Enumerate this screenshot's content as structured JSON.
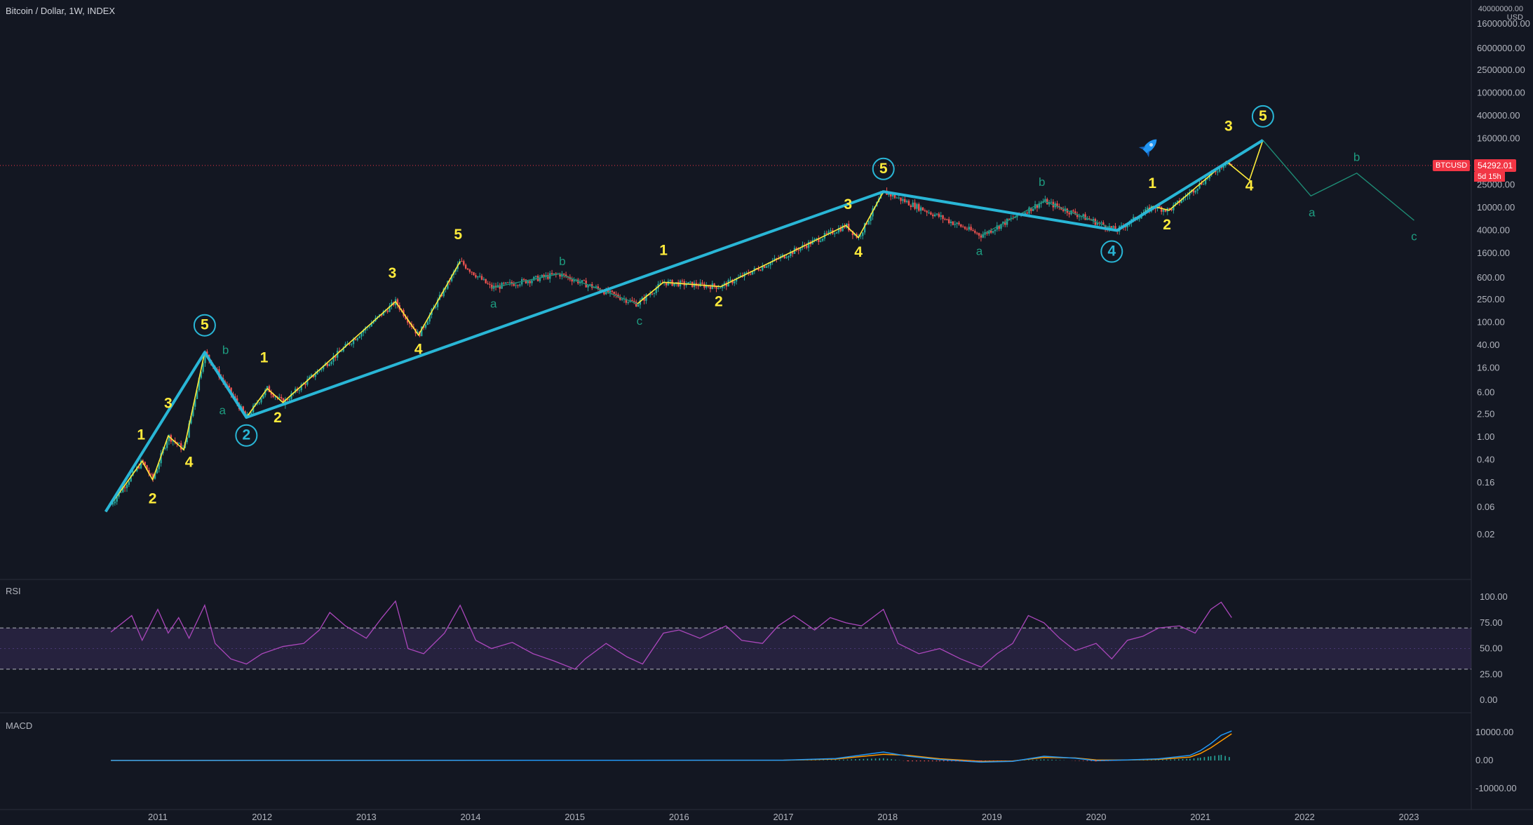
{
  "header": {
    "title": "Bitcoin / Dollar, 1W, INDEX",
    "currency": "USD",
    "top_price": "40000000.00"
  },
  "price_tag": {
    "symbol": "BTCUSD",
    "price": "54292.01",
    "countdown": "5d 15h"
  },
  "rsi_label": "RSI",
  "macd_label": "MACD",
  "chart_data": [
    {
      "type": "candlestick",
      "scale": "log",
      "price_ticks": [
        "16000000.00",
        "6000000.00",
        "2500000.00",
        "1000000.00",
        "400000.00",
        "160000.00",
        "25000.00",
        "10000.00",
        "4000.00",
        "1600.00",
        "600.00",
        "250.00",
        "100.00",
        "40.00",
        "16.00",
        "6.00",
        "2.50",
        "1.00",
        "0.40",
        "0.16",
        "0.06",
        "0.02"
      ],
      "x_ticks": [
        "2011",
        "2012",
        "2013",
        "2014",
        "2015",
        "2016",
        "2017",
        "2018",
        "2019",
        "2020",
        "2021",
        "2022",
        "2023"
      ],
      "last_price": 54292.01,
      "cyan_wave": [
        {
          "date": 2010.5,
          "price": 0.05
        },
        {
          "date": 2011.45,
          "price": 30
        },
        {
          "date": 2011.85,
          "price": 2.2
        },
        {
          "date": 2017.96,
          "price": 19000
        },
        {
          "date": 2020.2,
          "price": 4000
        },
        {
          "date": 2021.6,
          "price": 150000
        }
      ],
      "yellow_waves": [
        [
          {
            "date": 2010.5,
            "price": 0.05
          },
          {
            "date": 2010.85,
            "price": 0.38
          },
          {
            "date": 2010.95,
            "price": 0.18
          },
          {
            "date": 2011.1,
            "price": 1.05
          },
          {
            "date": 2011.25,
            "price": 0.6
          },
          {
            "date": 2011.45,
            "price": 30
          }
        ],
        [
          {
            "date": 2011.85,
            "price": 2.2
          },
          {
            "date": 2012.05,
            "price": 7
          },
          {
            "date": 2012.2,
            "price": 4
          },
          {
            "date": 2013.28,
            "price": 230
          },
          {
            "date": 2013.5,
            "price": 60
          },
          {
            "date": 2013.9,
            "price": 1150
          }
        ],
        [
          {
            "date": 2015.6,
            "price": 210
          },
          {
            "date": 2015.85,
            "price": 500
          },
          {
            "date": 2016.4,
            "price": 420
          },
          {
            "date": 2017.6,
            "price": 4900
          },
          {
            "date": 2017.72,
            "price": 3000
          },
          {
            "date": 2017.96,
            "price": 19000
          }
        ],
        [
          {
            "date": 2020.2,
            "price": 4000
          },
          {
            "date": 2020.55,
            "price": 10500
          },
          {
            "date": 2020.7,
            "price": 9000
          },
          {
            "date": 2021.25,
            "price": 64000
          },
          {
            "date": 2021.47,
            "price": 30000
          },
          {
            "date": 2021.6,
            "price": 150000
          }
        ]
      ],
      "green_corrections": [
        [
          {
            "date": 2014.2,
            "price": 400
          },
          {
            "date": 2014.85,
            "price": 700
          },
          {
            "date": 2015.6,
            "price": 210
          }
        ],
        [
          {
            "date": 2018.9,
            "price": 3300
          },
          {
            "date": 2019.5,
            "price": 13000
          },
          {
            "date": 2020.2,
            "price": 4000
          }
        ],
        [
          {
            "date": 2021.6,
            "price": 150000
          },
          {
            "date": 2022.06,
            "price": 16000
          },
          {
            "date": 2022.5,
            "price": 40000
          },
          {
            "date": 2023.05,
            "price": 6000
          }
        ]
      ],
      "wave_labels": [
        {
          "text": "1",
          "date": 2010.84,
          "price": 0.9,
          "color": "yellow"
        },
        {
          "text": "2",
          "date": 2010.95,
          "price": 0.07,
          "color": "yellow"
        },
        {
          "text": "3",
          "date": 2011.1,
          "price": 3.2,
          "color": "yellow"
        },
        {
          "text": "4",
          "date": 2011.3,
          "price": 0.3,
          "color": "yellow"
        },
        {
          "text": "5",
          "date": 2011.45,
          "price": 75,
          "color": "yellow",
          "circled": true
        },
        {
          "text": "a",
          "date": 2011.62,
          "price": 2.5,
          "color": "green"
        },
        {
          "text": "b",
          "date": 2011.65,
          "price": 28,
          "color": "green"
        },
        {
          "text": "2",
          "date": 2011.85,
          "price": 0.9,
          "color": "cyan",
          "circled": true
        },
        {
          "text": "1",
          "date": 2012.02,
          "price": 20,
          "color": "yellow"
        },
        {
          "text": "2",
          "date": 2012.15,
          "price": 1.8,
          "color": "yellow"
        },
        {
          "text": "3",
          "date": 2013.25,
          "price": 600,
          "color": "yellow"
        },
        {
          "text": "4",
          "date": 2013.5,
          "price": 28,
          "color": "yellow"
        },
        {
          "text": "5",
          "date": 2013.88,
          "price": 2800,
          "color": "yellow"
        },
        {
          "text": "a",
          "date": 2014.22,
          "price": 180,
          "color": "green"
        },
        {
          "text": "b",
          "date": 2014.88,
          "price": 1000,
          "color": "green"
        },
        {
          "text": "c",
          "date": 2015.62,
          "price": 90,
          "color": "green"
        },
        {
          "text": "1",
          "date": 2015.85,
          "price": 1500,
          "color": "yellow"
        },
        {
          "text": "2",
          "date": 2016.38,
          "price": 190,
          "color": "yellow"
        },
        {
          "text": "3",
          "date": 2017.62,
          "price": 9500,
          "color": "yellow"
        },
        {
          "text": "4",
          "date": 2017.72,
          "price": 1400,
          "color": "yellow"
        },
        {
          "text": "5",
          "date": 2017.96,
          "price": 40000,
          "color": "yellow",
          "circled": true
        },
        {
          "text": "a",
          "date": 2018.88,
          "price": 1500,
          "color": "green"
        },
        {
          "text": "b",
          "date": 2019.48,
          "price": 24000,
          "color": "green"
        },
        {
          "text": "4",
          "date": 2020.15,
          "price": 1450,
          "color": "cyan",
          "circled": true
        },
        {
          "text": "1",
          "date": 2020.54,
          "price": 22000,
          "color": "yellow"
        },
        {
          "text": "2",
          "date": 2020.68,
          "price": 4200,
          "color": "yellow"
        },
        {
          "text": "3",
          "date": 2021.27,
          "price": 220000,
          "color": "yellow"
        },
        {
          "text": "4",
          "date": 2021.47,
          "price": 20000,
          "color": "yellow"
        },
        {
          "text": "5",
          "date": 2021.6,
          "price": 330000,
          "color": "yellow",
          "circled": true
        },
        {
          "text": "a",
          "date": 2022.07,
          "price": 7000,
          "color": "green"
        },
        {
          "text": "b",
          "date": 2022.5,
          "price": 65000,
          "color": "green"
        },
        {
          "text": "c",
          "date": 2023.05,
          "price": 2700,
          "color": "green"
        }
      ]
    },
    {
      "type": "line",
      "name": "RSI",
      "ylim": [
        0,
        100
      ],
      "y_ticks": [
        "100.00",
        "75.00",
        "50.00",
        "25.00",
        "0.00"
      ],
      "band": [
        30,
        70
      ],
      "x": [
        2010.55,
        2010.75,
        2010.85,
        2011.0,
        2011.1,
        2011.2,
        2011.3,
        2011.45,
        2011.55,
        2011.7,
        2011.85,
        2012.0,
        2012.2,
        2012.4,
        2012.55,
        2012.65,
        2012.8,
        2013.0,
        2013.15,
        2013.28,
        2013.4,
        2013.55,
        2013.75,
        2013.9,
        2014.05,
        2014.2,
        2014.4,
        2014.6,
        2014.8,
        2015.0,
        2015.1,
        2015.3,
        2015.5,
        2015.65,
        2015.85,
        2016.0,
        2016.2,
        2016.45,
        2016.6,
        2016.8,
        2016.95,
        2017.1,
        2017.3,
        2017.45,
        2017.6,
        2017.75,
        2017.96,
        2018.1,
        2018.3,
        2018.5,
        2018.7,
        2018.9,
        2019.05,
        2019.2,
        2019.35,
        2019.5,
        2019.65,
        2019.8,
        2020.0,
        2020.15,
        2020.3,
        2020.45,
        2020.6,
        2020.8,
        2020.95,
        2021.1,
        2021.2,
        2021.3
      ],
      "values": [
        66,
        82,
        58,
        88,
        65,
        80,
        60,
        92,
        55,
        40,
        35,
        45,
        52,
        55,
        68,
        85,
        72,
        60,
        80,
        96,
        50,
        45,
        65,
        92,
        58,
        50,
        56,
        45,
        38,
        30,
        40,
        55,
        42,
        35,
        65,
        68,
        60,
        72,
        58,
        55,
        72,
        82,
        68,
        80,
        75,
        72,
        88,
        55,
        45,
        50,
        40,
        32,
        45,
        55,
        82,
        75,
        60,
        48,
        55,
        40,
        58,
        62,
        70,
        72,
        65,
        88,
        95,
        80
      ]
    },
    {
      "type": "line",
      "name": "MACD",
      "ylim": [
        -12000,
        12000
      ],
      "y_ticks": [
        "10000.00",
        "0.00",
        "-10000.00"
      ],
      "x": [
        2010.55,
        2017.0,
        2017.5,
        2017.96,
        2018.2,
        2018.5,
        2018.9,
        2019.2,
        2019.5,
        2019.8,
        2020.0,
        2020.3,
        2020.6,
        2020.9,
        2021.0,
        2021.1,
        2021.2,
        2021.3
      ],
      "macd": [
        0,
        100,
        700,
        3000,
        1500,
        300,
        -600,
        -300,
        1500,
        800,
        -100,
        200,
        600,
        1800,
        3500,
        6000,
        9000,
        10500
      ],
      "signal": [
        0,
        80,
        500,
        2200,
        1800,
        600,
        -300,
        -200,
        1100,
        900,
        200,
        150,
        400,
        1200,
        2500,
        4500,
        7000,
        9500
      ]
    }
  ]
}
